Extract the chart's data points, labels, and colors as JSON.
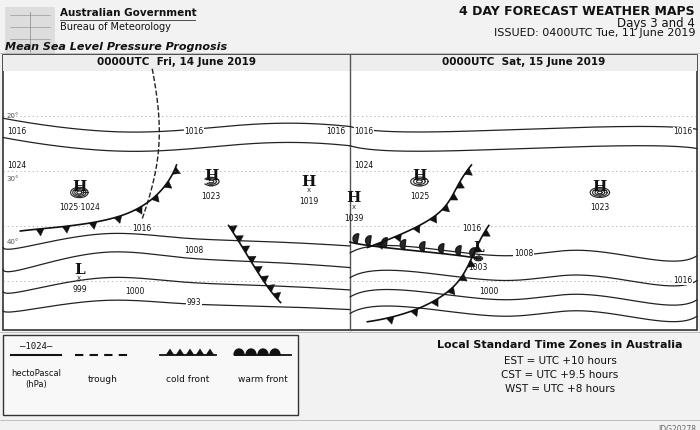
{
  "title_line1": "4 DAY FORECAST WEATHER MAPS",
  "title_line2": "Days 3 and 4",
  "title_line3": "ISSUED: 0400UTC Tue, 11 June 2019",
  "left_title": "Mean Sea Level Pressure Prognosis",
  "map_label_left": "0000UTC  Fri, 14 June 2019",
  "map_label_right": "0000UTC  Sat, 15 June 2019",
  "timezone_title": "Local Standard Time Zones in Australia",
  "timezone_lines": [
    "EST = UTC +10 hours",
    "CST = UTC +9.5 hours",
    "WST = UTC +8 hours"
  ],
  "logo_text_line1": "Australian Government",
  "logo_text_line2": "Bureau of Meteorology",
  "bg_color": "#f2f2f2",
  "map_bg": "#ffffff",
  "fig_width": 7.0,
  "fig_height": 4.3,
  "dpi": 100,
  "ref_code": "IDG20278",
  "left_H_labels": [
    {
      "fx": 0.22,
      "fy": 0.5,
      "pressure": "1025·1024"
    },
    {
      "fx": 0.6,
      "fy": 0.54,
      "pressure": "1023"
    },
    {
      "fx": 0.88,
      "fy": 0.56,
      "pressure": "1019"
    }
  ],
  "left_L_labels": [
    {
      "fx": 0.22,
      "fy": 0.2,
      "pressure": "999"
    }
  ],
  "right_H_labels": [
    {
      "fx": 0.2,
      "fy": 0.54,
      "pressure": "1025"
    },
    {
      "fx": 0.72,
      "fy": 0.5,
      "pressure": "1023"
    },
    {
      "fx": 0.02,
      "fy": 0.46,
      "pressure": "1039"
    }
  ],
  "right_L_labels": [
    {
      "fx": 0.37,
      "fy": 0.26,
      "pressure": "1003"
    }
  ],
  "left_isobar_labels": [
    {
      "fx": 0.04,
      "fy": 0.72,
      "text": "1016"
    },
    {
      "fx": 0.04,
      "fy": 0.6,
      "text": "1024"
    },
    {
      "fx": 0.55,
      "fy": 0.72,
      "text": "1016"
    },
    {
      "fx": 0.96,
      "fy": 0.72,
      "text": "1016"
    },
    {
      "fx": 0.4,
      "fy": 0.37,
      "text": "1016"
    },
    {
      "fx": 0.55,
      "fy": 0.29,
      "text": "1008"
    },
    {
      "fx": 0.38,
      "fy": 0.14,
      "text": "1000"
    },
    {
      "fx": 0.55,
      "fy": 0.1,
      "text": "993"
    }
  ],
  "right_isobar_labels": [
    {
      "fx": 0.04,
      "fy": 0.6,
      "text": "1024"
    },
    {
      "fx": 0.04,
      "fy": 0.72,
      "text": "1016"
    },
    {
      "fx": 0.96,
      "fy": 0.72,
      "text": "1016"
    },
    {
      "fx": 0.35,
      "fy": 0.37,
      "text": "1016"
    },
    {
      "fx": 0.5,
      "fy": 0.28,
      "text": "1008"
    },
    {
      "fx": 0.4,
      "fy": 0.14,
      "text": "1000"
    },
    {
      "fx": 0.96,
      "fy": 0.18,
      "text": "1016"
    }
  ]
}
